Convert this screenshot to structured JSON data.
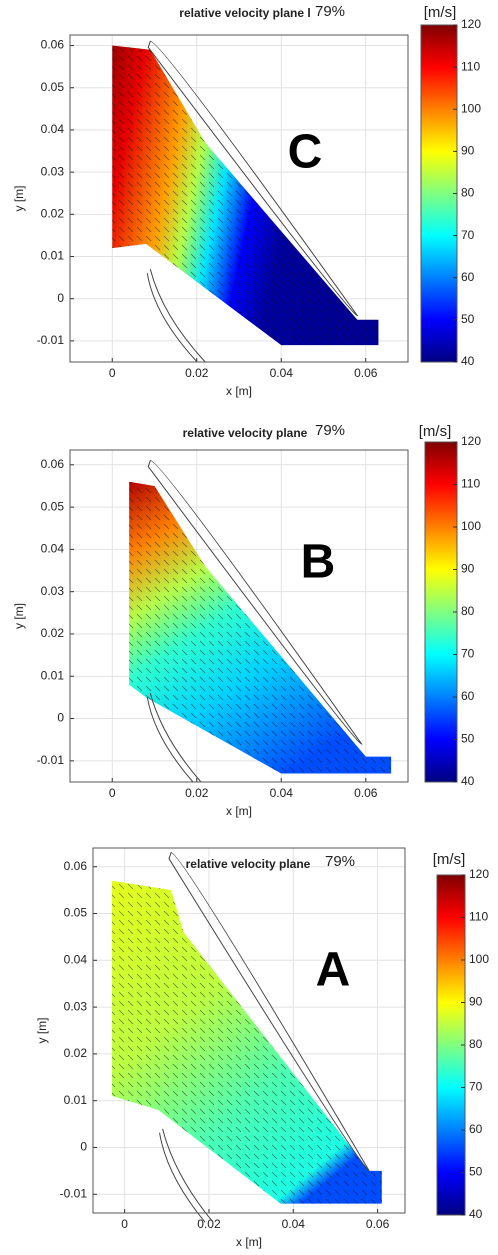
{
  "chart_data": [
    {
      "type": "heatmap",
      "title": "relative velocity plane l",
      "subtitle": "79%",
      "label": "C",
      "xlabel": "x [m]",
      "ylabel": "y [m]",
      "xlim": [
        -0.01,
        0.07
      ],
      "ylim": [
        -0.015,
        0.0625
      ],
      "xticks": [
        0,
        0.02,
        0.04,
        0.06
      ],
      "yticks": [
        -0.01,
        0,
        0.01,
        0.02,
        0.03,
        0.04,
        0.05,
        0.06
      ],
      "grid": true,
      "colorbar": {
        "label": "[m/s]",
        "lim": [
          40,
          120
        ],
        "ticks": [
          40,
          50,
          60,
          70,
          80,
          90,
          100,
          110,
          120
        ],
        "colormap": "jet"
      }
    },
    {
      "type": "heatmap",
      "title": "relative velocity plane",
      "subtitle": "79%",
      "label": "B",
      "xlabel": "x [m]",
      "ylabel": "y [m]",
      "xlim": [
        -0.01,
        0.07
      ],
      "ylim": [
        -0.015,
        0.0635
      ],
      "xticks": [
        0,
        0.02,
        0.04,
        0.06
      ],
      "yticks": [
        -0.01,
        0,
        0.01,
        0.02,
        0.03,
        0.04,
        0.05,
        0.06
      ],
      "grid": true,
      "colorbar": {
        "label": "[m/s]",
        "lim": [
          40,
          120
        ],
        "ticks": [
          40,
          50,
          60,
          70,
          80,
          90,
          100,
          110,
          120
        ],
        "colormap": "jet"
      }
    },
    {
      "type": "heatmap",
      "title": "relative velocity plane",
      "subtitle": "79%",
      "label": "A",
      "xlabel": "x [m]",
      "ylabel": "y [m]",
      "xlim": [
        -0.0075,
        0.0665
      ],
      "ylim": [
        -0.014,
        0.064
      ],
      "xticks": [
        0,
        0.02,
        0.04,
        0.06
      ],
      "yticks": [
        -0.01,
        0,
        0.01,
        0.02,
        0.03,
        0.04,
        0.05,
        0.06
      ],
      "grid": true,
      "colorbar": {
        "label": "[m/s]",
        "lim": [
          40,
          120
        ],
        "ticks": [
          40,
          50,
          60,
          70,
          80,
          90,
          100,
          110,
          120
        ],
        "colormap": "jet"
      }
    }
  ]
}
